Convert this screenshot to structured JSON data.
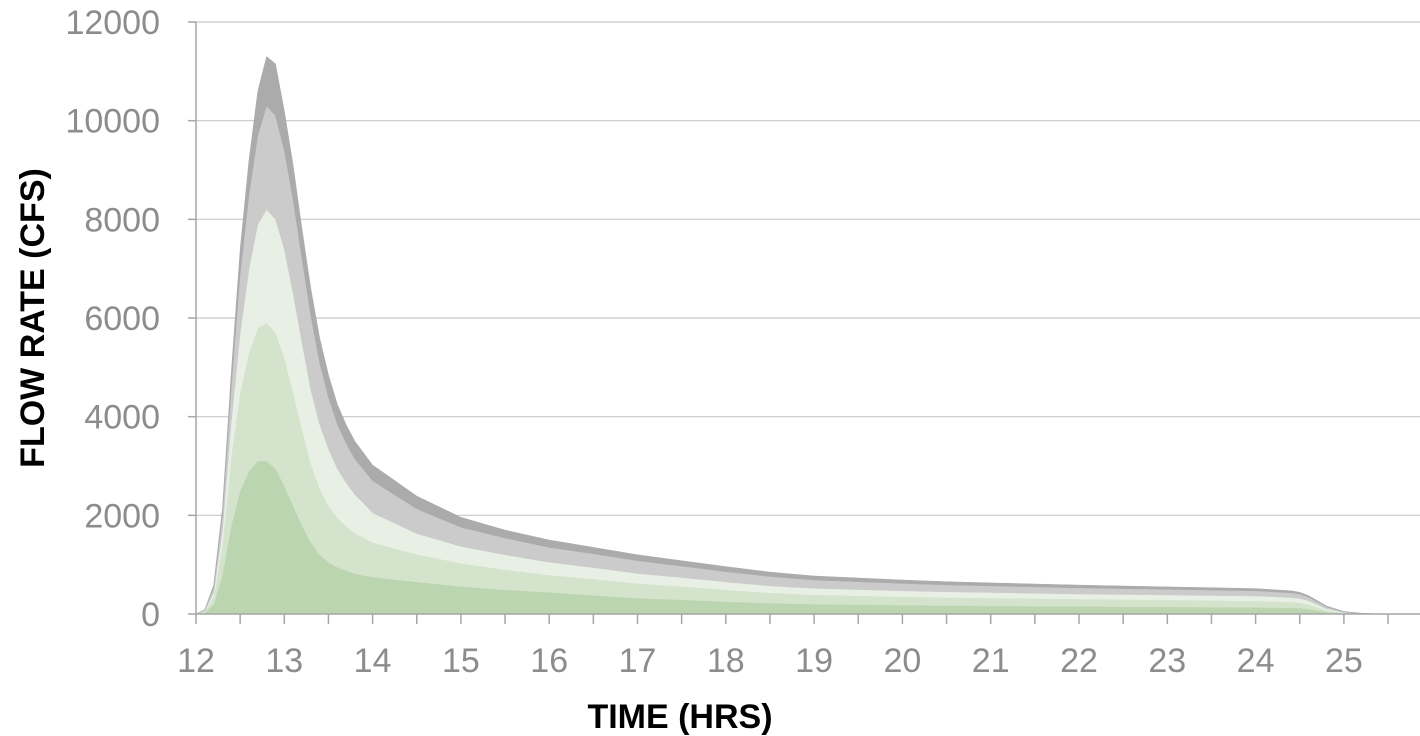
{
  "chart_data": {
    "type": "area",
    "stacked": true,
    "title": "",
    "xlabel": "TIME (HRS)",
    "ylabel": "FLOW RATE (CFS)",
    "xlim": [
      12,
      25.5
    ],
    "ylim": [
      0,
      12000
    ],
    "x_ticks": [
      "12",
      "13",
      "14",
      "15",
      "16",
      "17",
      "18",
      "19",
      "20",
      "21",
      "22",
      "23",
      "24",
      "25"
    ],
    "y_ticks": [
      "0",
      "2000",
      "4000",
      "6000",
      "8000",
      "10000",
      "12000"
    ],
    "grid": "horizontal",
    "legend": "none",
    "x": [
      12.0,
      12.1,
      12.2,
      12.3,
      12.4,
      12.5,
      12.6,
      12.7,
      12.8,
      12.9,
      13.0,
      13.1,
      13.2,
      13.3,
      13.4,
      13.5,
      13.6,
      13.7,
      13.8,
      13.9,
      14.0,
      14.5,
      15.0,
      15.5,
      16.0,
      16.5,
      17.0,
      17.5,
      18.0,
      18.5,
      19.0,
      19.5,
      20.0,
      20.5,
      21.0,
      21.5,
      22.0,
      22.5,
      23.0,
      23.5,
      24.0,
      24.2,
      24.4,
      24.5,
      24.6,
      24.7,
      24.8,
      25.0,
      25.2,
      25.4,
      25.5
    ],
    "series": [
      {
        "color": "#bcd5b1",
        "values": [
          0,
          30,
          200,
          800,
          1800,
          2500,
          2900,
          3100,
          3100,
          2950,
          2600,
          2200,
          1800,
          1450,
          1200,
          1050,
          950,
          880,
          820,
          780,
          750,
          650,
          560,
          490,
          440,
          380,
          320,
          290,
          250,
          220,
          200,
          190,
          180,
          170,
          165,
          160,
          155,
          150,
          145,
          140,
          135,
          130,
          125,
          120,
          100,
          70,
          40,
          10,
          3,
          0,
          0
        ]
      },
      {
        "color": "#d3e3cc",
        "values": [
          0,
          20,
          150,
          600,
          1400,
          2000,
          2400,
          2700,
          2800,
          2750,
          2600,
          2300,
          1950,
          1600,
          1350,
          1150,
          1000,
          900,
          820,
          760,
          700,
          560,
          470,
          410,
          350,
          330,
          300,
          270,
          240,
          210,
          190,
          180,
          170,
          165,
          160,
          155,
          150,
          145,
          140,
          135,
          130,
          125,
          120,
          110,
          90,
          60,
          35,
          10,
          3,
          0,
          0
        ]
      },
      {
        "color": "#e8f0e5",
        "values": [
          0,
          10,
          80,
          300,
          700,
          1200,
          1700,
          2100,
          2300,
          2300,
          2200,
          2000,
          1750,
          1500,
          1300,
          1150,
          1000,
          880,
          780,
          700,
          600,
          420,
          340,
          300,
          260,
          230,
          200,
          180,
          160,
          140,
          130,
          125,
          120,
          115,
          110,
          105,
          100,
          100,
          100,
          100,
          100,
          95,
          90,
          85,
          80,
          60,
          35,
          10,
          3,
          0,
          0
        ]
      },
      {
        "color": "#cbcbcb",
        "values": [
          0,
          20,
          100,
          300,
          700,
          1200,
          1500,
          1800,
          2100,
          2100,
          2000,
          1900,
          1700,
          1500,
          1250,
          1050,
          900,
          800,
          720,
          680,
          650,
          500,
          390,
          340,
          300,
          280,
          260,
          230,
          210,
          190,
          170,
          160,
          150,
          140,
          135,
          130,
          125,
          120,
          115,
          110,
          105,
          100,
          95,
          90,
          70,
          55,
          35,
          12,
          4,
          0,
          0
        ]
      },
      {
        "color": "#ababab",
        "values": [
          0,
          10,
          60,
          150,
          300,
          500,
          700,
          900,
          1000,
          1050,
          800,
          700,
          600,
          550,
          500,
          450,
          400,
          380,
          360,
          340,
          320,
          260,
          200,
          160,
          150,
          130,
          120,
          110,
          100,
          90,
          80,
          75,
          70,
          65,
          60,
          58,
          55,
          52,
          50,
          48,
          45,
          42,
          40,
          35,
          30,
          25,
          20,
          8,
          3,
          0,
          0
        ]
      }
    ]
  }
}
